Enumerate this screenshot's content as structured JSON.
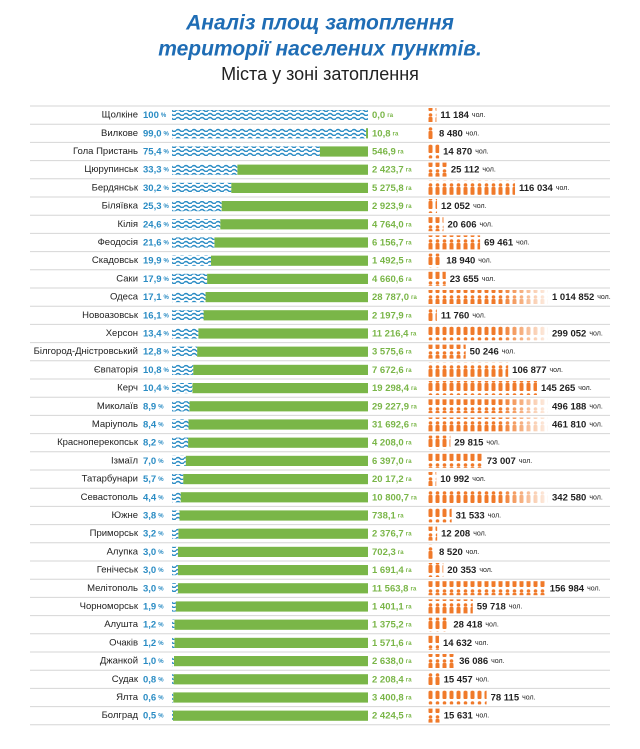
{
  "chart_data": {
    "type": "bar",
    "title": [
      "Аналіз площ затоплення",
      "території населених пунктів."
    ],
    "subtitle": "Міста у зоні затоплення",
    "categories": [
      "Щолкіне",
      "Вилкове",
      "Гола Пристань",
      "Цюрупинськ",
      "Бердянськ",
      "Біляївка",
      "Кілія",
      "Феодосія",
      "Скадовськ",
      "Саки",
      "Одеса",
      "Новоазовськ",
      "Херсон",
      "Білгород-Дністровський",
      "Євпаторія",
      "Керч",
      "Миколаїв",
      "Маріуполь",
      "Красноперекопськ",
      "Ізмаїл",
      "Татарбунари",
      "Севастополь",
      "Южне",
      "Приморськ",
      "Алупка",
      "Генічеськ",
      "Мелітополь",
      "Чорноморськ",
      "Алушта",
      "Очаків",
      "Джанкой",
      "Судак",
      "Ялта",
      "Болград"
    ],
    "xlim": [
      0,
      100
    ],
    "series": [
      {
        "unit": "%",
        "color": "#2a8cc4",
        "values": [
          100,
          99.0,
          75.4,
          33.3,
          30.2,
          25.3,
          24.6,
          21.6,
          19.9,
          17.9,
          17.1,
          16.1,
          13.4,
          12.8,
          10.8,
          10.4,
          8.9,
          8.4,
          8.2,
          7.0,
          5.7,
          4.4,
          3.8,
          3.2,
          3.0,
          3.0,
          3.0,
          1.9,
          1.2,
          1.2,
          1.0,
          0.8,
          0.6,
          0.5
        ],
        "value_labels": [
          "100",
          "99,0",
          "75,4",
          "33,3",
          "30,2",
          "25,3",
          "24,6",
          "21,6",
          "19,9",
          "17,9",
          "17,1",
          "16,1",
          "13,4",
          "12,8",
          "10,8",
          "10,4",
          "8,9",
          "8,4",
          "8,2",
          "7,0",
          "5,7",
          "4,4",
          "3,8",
          "3,2",
          "3,0",
          "3,0",
          "3,0",
          "1,9",
          "1,2",
          "1,2",
          "1,0",
          "0,8",
          "0,6",
          "0,5"
        ]
      },
      {
        "unit": "га",
        "color": "#7ab648",
        "values": [
          0.0,
          10.8,
          546.9,
          2423.7,
          5275.8,
          2923.9,
          4764.0,
          6156.7,
          1492.5,
          4660.6,
          28787.0,
          2197.9,
          11216.4,
          3575.6,
          7672.6,
          19298.4,
          29227.9,
          31692.6,
          4208.0,
          6397.0,
          2017.2,
          10800.7,
          738.1,
          2376.7,
          702.3,
          1691.4,
          11563.8,
          1401.1,
          1375.2,
          1571.6,
          2638.0,
          2208.4,
          3400.8,
          2424.5
        ],
        "value_labels": [
          "0,0",
          "10,8",
          "546,9",
          "2 423,7",
          "5 275,8",
          "2 923,9",
          "4 764,0",
          "6 156,7",
          "1 492,5",
          "4 660,6",
          "28 787,0",
          "2 197,9",
          "11 216,4",
          "3 575,6",
          "7 672,6",
          "19 298,4",
          "29 227,9",
          "31 692,6",
          "4 208,0",
          "6 397,0",
          "20 17,2",
          "10 800,7",
          "738,1",
          "2 376,7",
          "702,3",
          "1 691,4",
          "11 563,8",
          "1 401,1",
          "1 375,2",
          "1 571,6",
          "2 638,0",
          "2 208,4",
          "3 400,8",
          "2 424,5"
        ]
      },
      {
        "unit": "чол.",
        "color": "#f07a2a",
        "values": [
          11184,
          8480,
          14870,
          25112,
          116034,
          12052,
          20606,
          69461,
          18940,
          23655,
          1014852,
          11760,
          299052,
          50246,
          106877,
          145265,
          496188,
          461810,
          29815,
          73007,
          10992,
          342580,
          31533,
          12208,
          8520,
          20353,
          156984,
          59718,
          28418,
          14632,
          36086,
          15457,
          78115,
          15631
        ],
        "value_labels": [
          "11 184",
          "8 480",
          "14 870",
          "25 112",
          "116 034",
          "12 052",
          "20 606",
          "69 461",
          "18 940",
          "23 655",
          "1 014 852",
          "11 760",
          "299 052",
          "50 246",
          "106 877",
          "145 265",
          "496 188",
          "461 810",
          "29 815",
          "73 007",
          "10 992",
          "342 580",
          "31 533",
          "12 208",
          "8 520",
          "20 353",
          "156 984",
          "59 718",
          "28 418",
          "14 632",
          "36 086",
          "15 457",
          "78 115",
          "15 631"
        ]
      }
    ]
  }
}
